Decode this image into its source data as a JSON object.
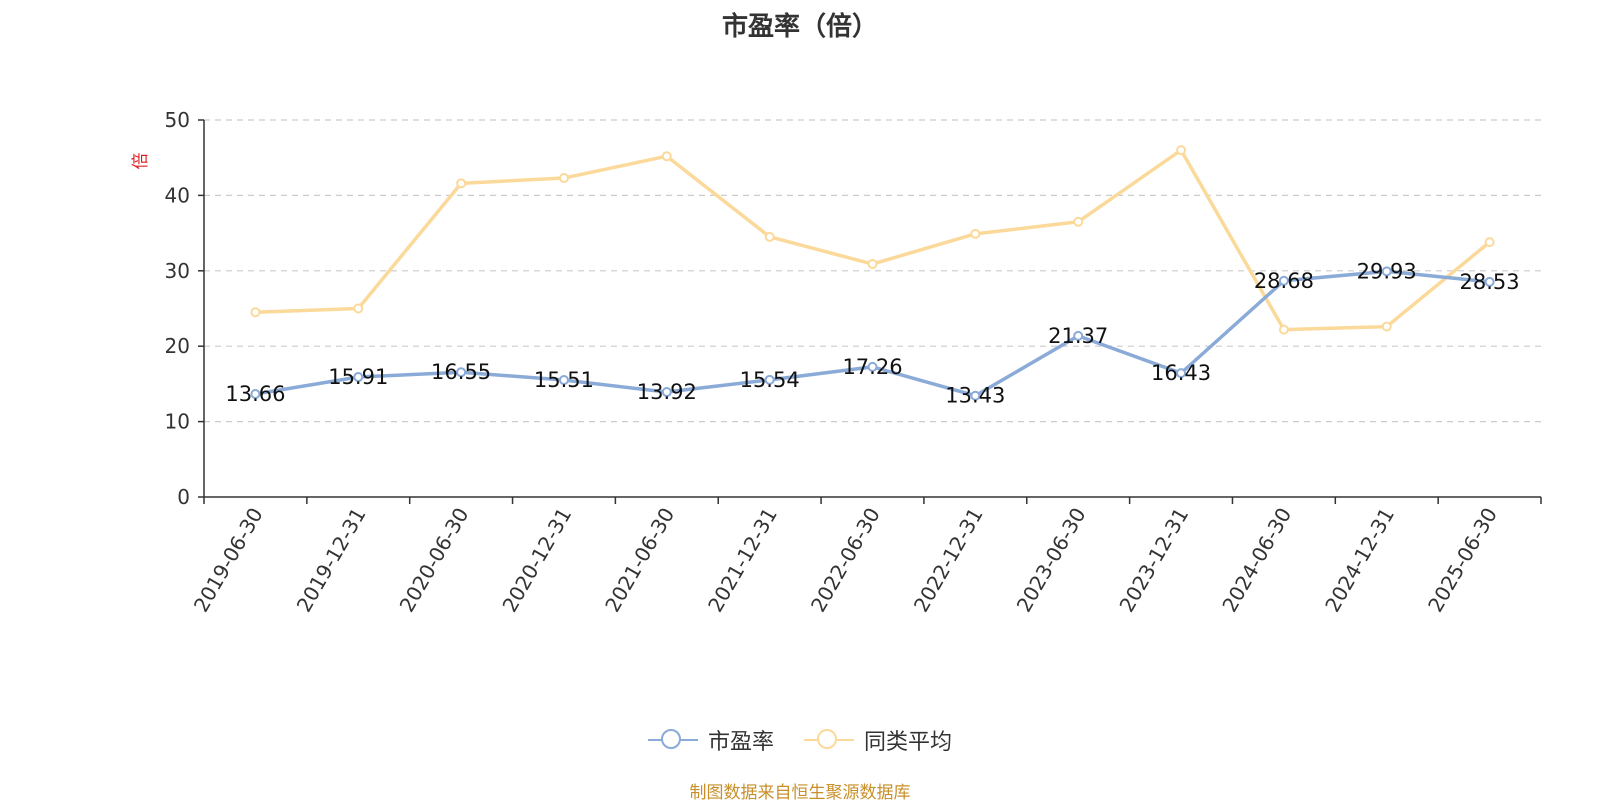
{
  "chart_data": {
    "type": "line",
    "title": "市盈率（倍）",
    "ylabel": "倍",
    "xlabel": "",
    "categories": [
      "2019-06-30",
      "2019-12-31",
      "2020-06-30",
      "2020-12-31",
      "2021-06-30",
      "2021-12-31",
      "2022-06-30",
      "2022-12-31",
      "2023-06-30",
      "2023-12-31",
      "2024-06-30",
      "2024-12-31",
      "2025-06-30"
    ],
    "ylim": [
      0,
      50
    ],
    "yticks": [
      0,
      10,
      20,
      30,
      40,
      50
    ],
    "grid": true,
    "legend_position": "bottom",
    "series": [
      {
        "name": "市盈率",
        "color": "#8aaad8",
        "values": [
          13.66,
          15.91,
          16.55,
          15.51,
          13.92,
          15.54,
          17.26,
          13.43,
          21.37,
          16.43,
          28.68,
          29.93,
          28.53
        ],
        "data_labels": [
          "13.66",
          "15.91",
          "16.55",
          "15.51",
          "13.92",
          "15.54",
          "17.26",
          "13.43",
          "21.37",
          "16.43",
          "28.68",
          "29.93",
          "28.53"
        ]
      },
      {
        "name": "同类平均",
        "color": "#fbd99a",
        "values": [
          24.5,
          25.0,
          41.6,
          42.3,
          45.2,
          34.5,
          30.9,
          34.9,
          36.5,
          46.0,
          22.2,
          22.6,
          33.8
        ]
      }
    ]
  },
  "footer": {
    "source": "制图数据来自恒生聚源数据库"
  }
}
